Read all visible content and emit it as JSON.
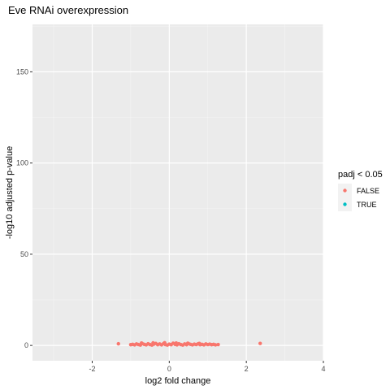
{
  "chart_data": {
    "type": "scatter",
    "title": "Eve RNAi overexpression",
    "xlabel": "log2 fold change",
    "ylabel": "-log10 adjusted p-value",
    "xlim": [
      -3.55,
      4.0
    ],
    "ylim": [
      -8.4,
      176
    ],
    "x_ticks": [
      -2,
      0,
      2,
      4
    ],
    "y_ticks": [
      0,
      50,
      100,
      150
    ],
    "grid": true,
    "legend_title": "padj < 0.05",
    "legend_position": "right",
    "series": [
      {
        "name": "FALSE",
        "color": "#F8766D",
        "x": [
          -1.32,
          -1.0,
          -0.95,
          -0.9,
          -0.85,
          -0.8,
          -0.75,
          -0.7,
          -0.65,
          -0.6,
          -0.55,
          -0.5,
          -0.45,
          -0.4,
          -0.35,
          -0.3,
          -0.25,
          -0.2,
          -0.15,
          -0.1,
          -0.05,
          0.0,
          0.05,
          0.1,
          0.15,
          0.2,
          0.25,
          0.3,
          0.35,
          0.4,
          0.45,
          0.5,
          0.55,
          0.6,
          0.65,
          0.7,
          0.75,
          0.8,
          0.85,
          0.9,
          0.95,
          1.0,
          1.05,
          1.1,
          1.15,
          1.2,
          1.27,
          -0.72,
          -0.42,
          -0.12,
          0.18,
          0.48,
          0.78,
          2.36
        ],
        "y": [
          0.9,
          0.4,
          0.6,
          0.3,
          0.8,
          0.5,
          0.2,
          1.0,
          0.6,
          0.3,
          0.9,
          0.5,
          0.2,
          0.7,
          1.1,
          0.4,
          0.8,
          0.3,
          1.0,
          0.5,
          0.2,
          0.7,
          0.4,
          1.2,
          0.6,
          0.3,
          0.9,
          0.5,
          0.2,
          0.8,
          0.4,
          1.0,
          0.6,
          0.3,
          0.7,
          0.5,
          0.9,
          0.4,
          0.6,
          0.3,
          0.8,
          0.5,
          0.7,
          0.4,
          0.6,
          0.3,
          0.5,
          1.3,
          1.4,
          1.5,
          1.3,
          1.2,
          1.1,
          1.1
        ]
      },
      {
        "name": "TRUE",
        "color": "#00BFC4",
        "x": [],
        "y": []
      }
    ]
  }
}
